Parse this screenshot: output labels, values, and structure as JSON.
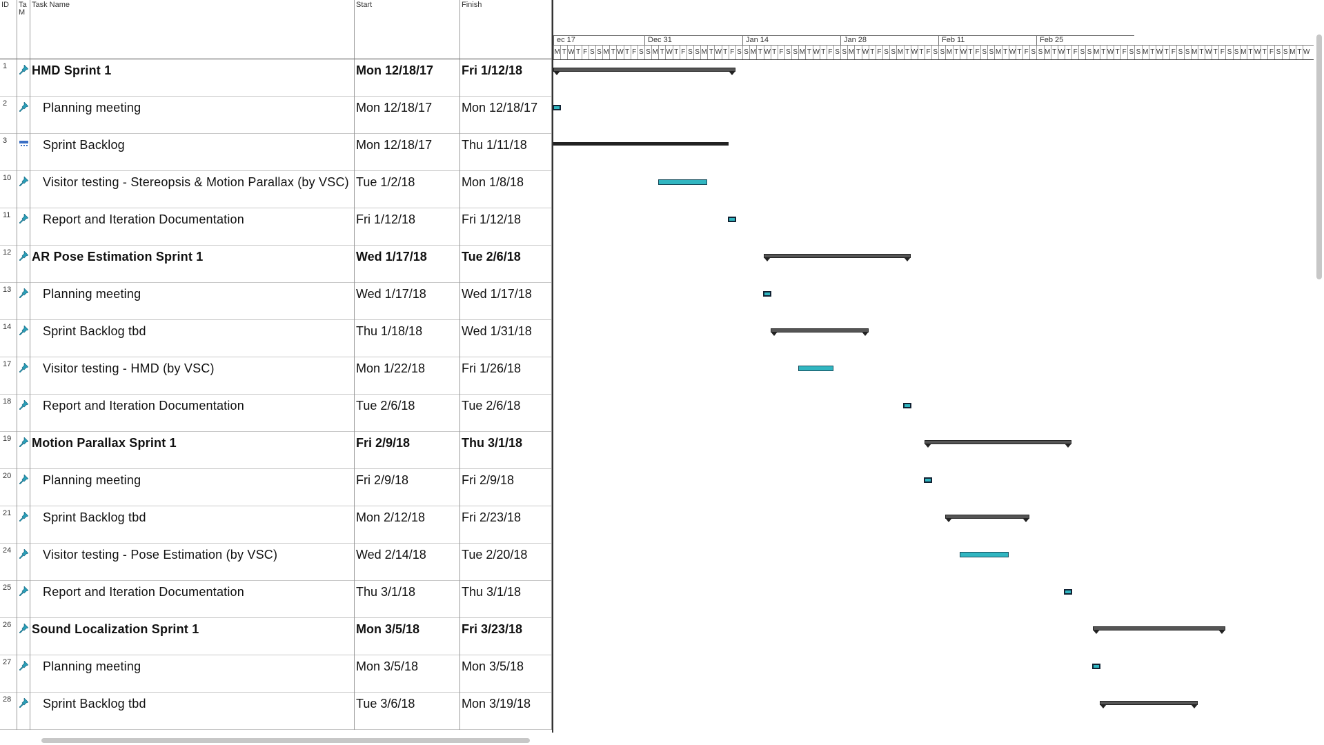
{
  "columns": {
    "id": "ID",
    "mode_a": "Ta",
    "mode_b": "M",
    "name": "Task Name",
    "start": "Start",
    "finish": "Finish"
  },
  "timeline": {
    "weeks": [
      "ec 17",
      "Dec 31",
      "Jan 14",
      "Jan 28",
      "Feb 11",
      "Feb 25"
    ],
    "day_letters": [
      "M",
      "T",
      "W",
      "T",
      "F",
      "S",
      "S"
    ]
  },
  "tasks": [
    {
      "id": "1",
      "name": "HMD Sprint 1",
      "start": "Mon 12/18/17",
      "finish": "Fri 1/12/18",
      "summary": true
    },
    {
      "id": "2",
      "name": "Planning meeting",
      "start": "Mon 12/18/17",
      "finish": "Mon 12/18/17",
      "summary": false
    },
    {
      "id": "3",
      "name": "Sprint Backlog",
      "start": "Mon 12/18/17",
      "finish": "Thu 1/11/18",
      "summary": false,
      "manual": true
    },
    {
      "id": "10",
      "name": "Visitor testing - Stereopsis & Motion Parallax (by VSC)",
      "start": "Tue 1/2/18",
      "finish": "Mon 1/8/18",
      "summary": false
    },
    {
      "id": "11",
      "name": "Report and Iteration Documentation",
      "start": "Fri 1/12/18",
      "finish": "Fri 1/12/18",
      "summary": false
    },
    {
      "id": "12",
      "name": "AR Pose Estimation Sprint 1",
      "start": "Wed 1/17/18",
      "finish": "Tue 2/6/18",
      "summary": true
    },
    {
      "id": "13",
      "name": "Planning meeting",
      "start": "Wed 1/17/18",
      "finish": "Wed 1/17/18",
      "summary": false
    },
    {
      "id": "14",
      "name": "Sprint Backlog tbd",
      "start": "Thu 1/18/18",
      "finish": "Wed 1/31/18",
      "summary": false,
      "subsummary": true
    },
    {
      "id": "17",
      "name": "Visitor testing - HMD (by VSC)",
      "start": "Mon 1/22/18",
      "finish": "Fri 1/26/18",
      "summary": false
    },
    {
      "id": "18",
      "name": "Report and Iteration Documentation",
      "start": "Tue 2/6/18",
      "finish": "Tue 2/6/18",
      "summary": false
    },
    {
      "id": "19",
      "name": "Motion Parallax Sprint 1",
      "start": "Fri 2/9/18",
      "finish": "Thu 3/1/18",
      "summary": true
    },
    {
      "id": "20",
      "name": "Planning meeting",
      "start": "Fri 2/9/18",
      "finish": "Fri 2/9/18",
      "summary": false
    },
    {
      "id": "21",
      "name": "Sprint Backlog tbd",
      "start": "Mon 2/12/18",
      "finish": "Fri 2/23/18",
      "summary": false,
      "subsummary": true
    },
    {
      "id": "24",
      "name": "Visitor testing - Pose Estimation (by VSC)",
      "start": "Wed 2/14/18",
      "finish": "Tue 2/20/18",
      "summary": false
    },
    {
      "id": "25",
      "name": "Report and Iteration Documentation",
      "start": "Thu 3/1/18",
      "finish": "Thu 3/1/18",
      "summary": false
    },
    {
      "id": "26",
      "name": "Sound Localization Sprint 1",
      "start": "Mon 3/5/18",
      "finish": "Fri 3/23/18",
      "summary": true
    },
    {
      "id": "27",
      "name": "Planning meeting",
      "start": "Mon 3/5/18",
      "finish": "Mon 3/5/18",
      "summary": false
    },
    {
      "id": "28",
      "name": "Sprint Backlog tbd",
      "start": "Tue 3/6/18",
      "finish": "Mon 3/19/18",
      "summary": false,
      "subsummary": true
    }
  ],
  "colors": {
    "task_bar": "#31b6c1",
    "summary_bar": "#555555"
  },
  "icons": {
    "auto_scheduled": "pushpin-icon",
    "manual_scheduled": "manual-task-icon"
  }
}
